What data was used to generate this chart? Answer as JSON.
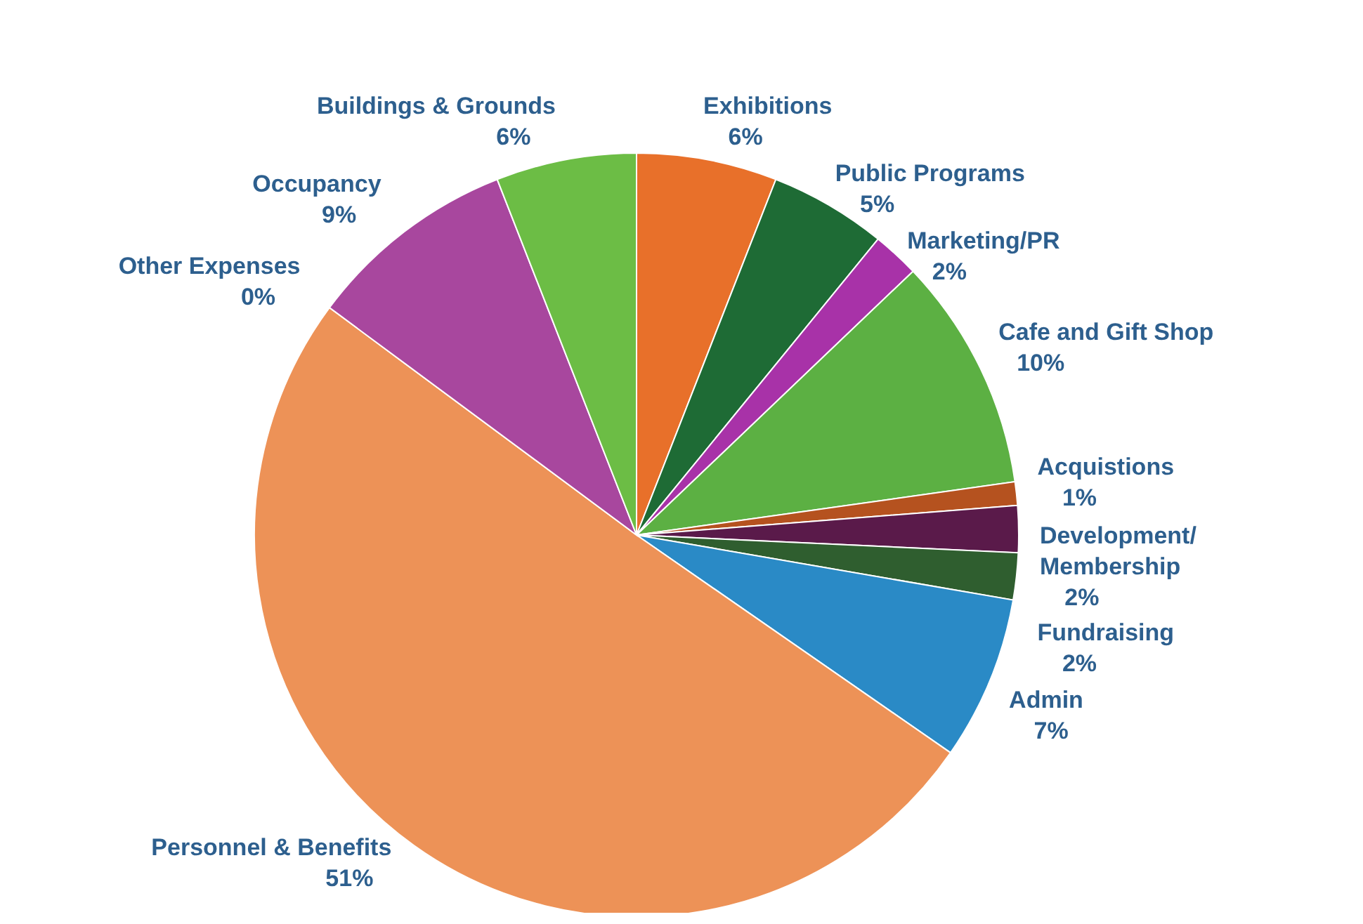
{
  "chart_data": {
    "type": "pie",
    "categories": [
      "Exhibitions",
      "Public Programs",
      "Marketing/PR",
      "Cafe and Gift Shop",
      "Acquistions",
      "Development/ Membership",
      "Fundraising",
      "Admin",
      "Personnel & Benefits",
      "Other Expenses",
      "Occupancy",
      "Buildings & Grounds"
    ],
    "values": [
      6,
      5,
      2,
      10,
      1,
      2,
      2,
      7,
      51,
      0,
      9,
      6
    ],
    "value_labels": [
      "6%",
      "5%",
      "2%",
      "10%",
      "1%",
      "2%",
      "2%",
      "7%",
      "51%",
      "0%",
      "9%",
      "6%"
    ],
    "colors": [
      "#e8702a",
      "#1e6b35",
      "#a832a8",
      "#5cb043",
      "#b5521f",
      "#5a1a4a",
      "#2f5e2f",
      "#2a8ac6",
      "#ed9257",
      "#999999",
      "#a8479e",
      "#6cbd45"
    ],
    "legend": false
  }
}
